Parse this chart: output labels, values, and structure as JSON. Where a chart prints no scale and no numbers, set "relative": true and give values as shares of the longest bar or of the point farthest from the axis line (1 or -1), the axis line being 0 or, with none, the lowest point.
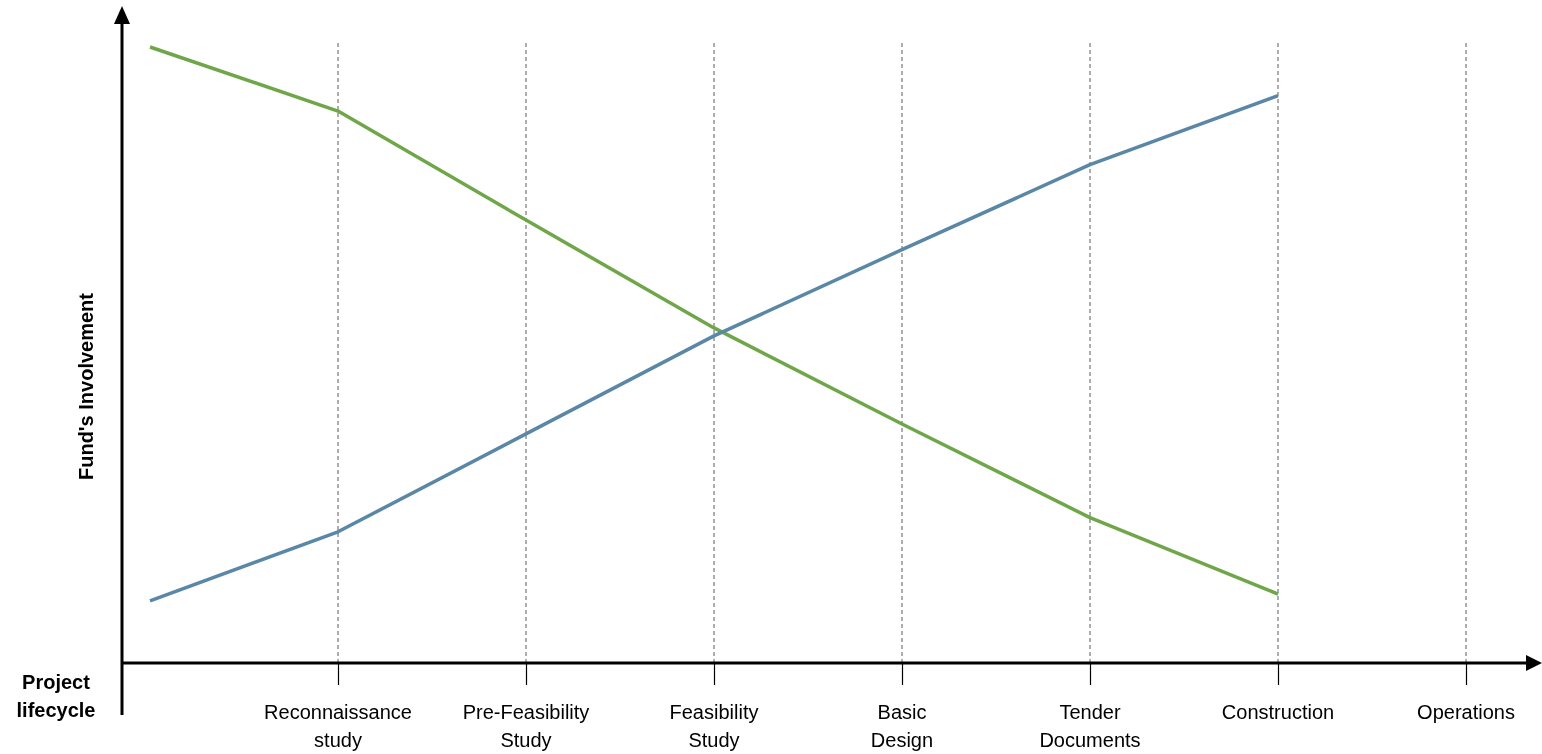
{
  "chart_data": {
    "type": "line",
    "relative": true,
    "xlabel": "Project lifecycle",
    "ylabel": "Fund's Involvement",
    "categories": [
      null,
      "Reconnaissance study",
      "Pre-Feasibility Study",
      "Feasibility Study",
      "Basic Design",
      "Tender Documents",
      "Construction",
      "Operations"
    ],
    "series": [
      {
        "color": "#70a64a",
        "values": [
          1.0,
          0.896,
          0.719,
          0.544,
          0.388,
          0.236,
          0.112,
          null
        ]
      },
      {
        "color": "#5b87a6",
        "values": [
          0.101,
          0.213,
          0.372,
          0.531,
          0.671,
          0.809,
          0.921,
          null
        ]
      }
    ],
    "grid": "x",
    "line_style": "solid",
    "marker": "none"
  }
}
